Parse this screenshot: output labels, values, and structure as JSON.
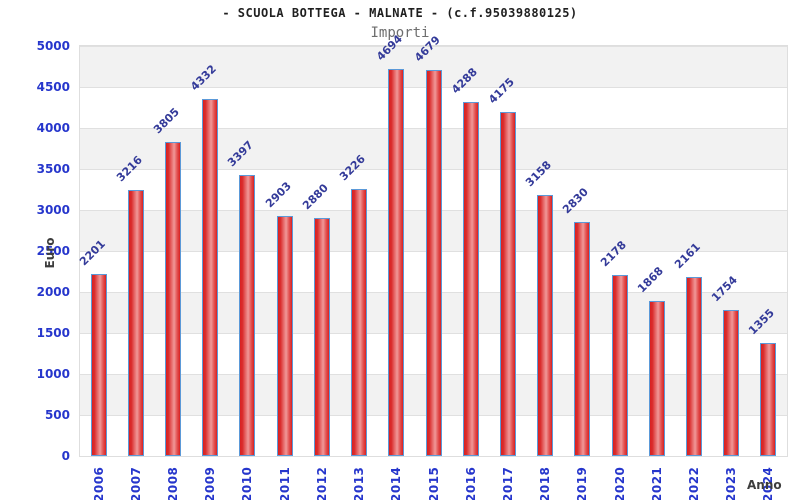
{
  "header": {
    "title": "- SCUOLA BOTTEGA - MALNATE - (c.f.95039880125)",
    "subtitle": "Importi"
  },
  "chart_data": {
    "type": "bar",
    "title": "- SCUOLA BOTTEGA - MALNATE - (c.f.95039880125)",
    "subtitle": "Importi",
    "xlabel": "Anno",
    "ylabel": "Euro",
    "categories": [
      "2006",
      "2007",
      "2008",
      "2009",
      "2010",
      "2011",
      "2012",
      "2013",
      "2014",
      "2015",
      "2016",
      "2017",
      "2018",
      "2019",
      "2020",
      "2021",
      "2022",
      "2023",
      "2024"
    ],
    "values": [
      2201,
      3216,
      3805,
      4332,
      3397,
      2903,
      2880,
      3226,
      4694,
      4679,
      4288,
      4175,
      3158,
      2830,
      2178,
      1868,
      2161,
      1754,
      1355
    ],
    "value_labels": [
      "2201",
      "3216",
      "3805",
      "4332",
      "3397",
      "2903",
      "2880",
      "3226",
      "4694",
      "4679",
      "4288",
      "4175",
      "3158",
      "2830",
      "2178",
      "1868",
      "2161",
      "1754",
      "1355"
    ],
    "ylim": [
      0,
      5000
    ],
    "ytick_interval": 500,
    "ytick_labels": [
      "0",
      "500",
      "1000",
      "1500",
      "2000",
      "2500",
      "3000",
      "3500",
      "4000",
      "4500",
      "5000"
    ],
    "grid": "horizontal gridlines with alternating background bands",
    "legend": "none",
    "colors": {
      "bar_fill_main": "#d92121",
      "bar_fill_highlight": "#f09898",
      "bar_border": "#5b99d8",
      "tick_label": "#2636cc",
      "value_label": "#333a99",
      "axis_title": "#3d3d3d",
      "band_gray": "#f2f2f2",
      "band_white": "#ffffff",
      "gridline": "#e0e0e0",
      "subtitle_gray": "#6e6e6e"
    }
  }
}
